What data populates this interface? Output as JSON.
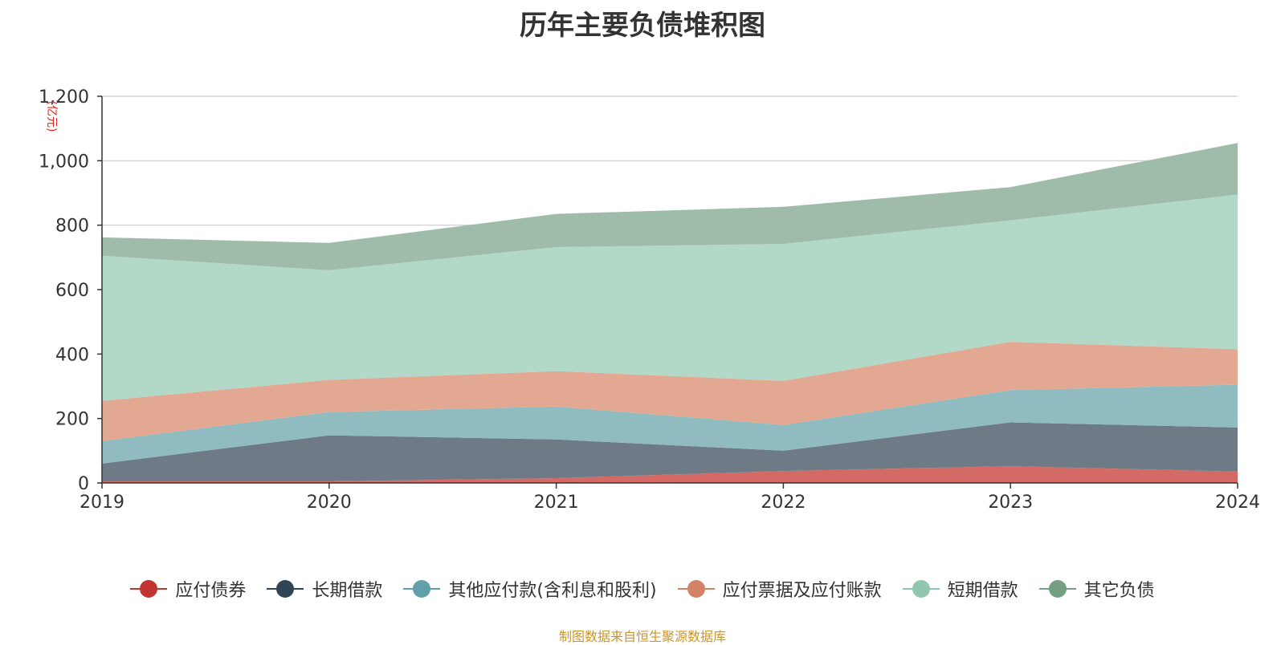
{
  "chart_data": {
    "type": "area",
    "stacked": true,
    "title": "历年主要负债堆积图",
    "ylabel": "(亿元)",
    "xlabel": "",
    "x": [
      "2019",
      "2020",
      "2021",
      "2022",
      "2023",
      "2024"
    ],
    "ylim": [
      0,
      1200
    ],
    "yticks": [
      0,
      200,
      400,
      600,
      800,
      1000,
      1200
    ],
    "ytick_labels": [
      "0",
      "200",
      "400",
      "600",
      "800",
      "1,000",
      "1,200"
    ],
    "grid": true,
    "legend_position": "bottom",
    "series": [
      {
        "name": "应付债券",
        "color": "#c23531",
        "fill": "#d46a66",
        "values": [
          5,
          5,
          15,
          37,
          52,
          35
        ]
      },
      {
        "name": "长期借款",
        "color": "#2f4554",
        "fill": "#6e7b86",
        "values": [
          55,
          143,
          120,
          63,
          136,
          137
        ]
      },
      {
        "name": "其他应付款(含利息和股利)",
        "color": "#61a0a8",
        "fill": "#8fbbc1",
        "values": [
          70,
          72,
          102,
          80,
          100,
          133
        ]
      },
      {
        "name": "应付票据及应付账款",
        "color": "#d48265",
        "fill": "#e2a892",
        "values": [
          125,
          100,
          110,
          137,
          150,
          110
        ]
      },
      {
        "name": "短期借款",
        "color": "#91c7ae",
        "fill": "#b2d9c7",
        "values": [
          450,
          340,
          385,
          425,
          377,
          480
        ]
      },
      {
        "name": "其它负债",
        "color": "#749f83",
        "fill": "#9fbba9",
        "values": [
          57,
          85,
          103,
          115,
          103,
          160
        ]
      }
    ]
  },
  "source_note": "制图数据来自恒生聚源数据库"
}
